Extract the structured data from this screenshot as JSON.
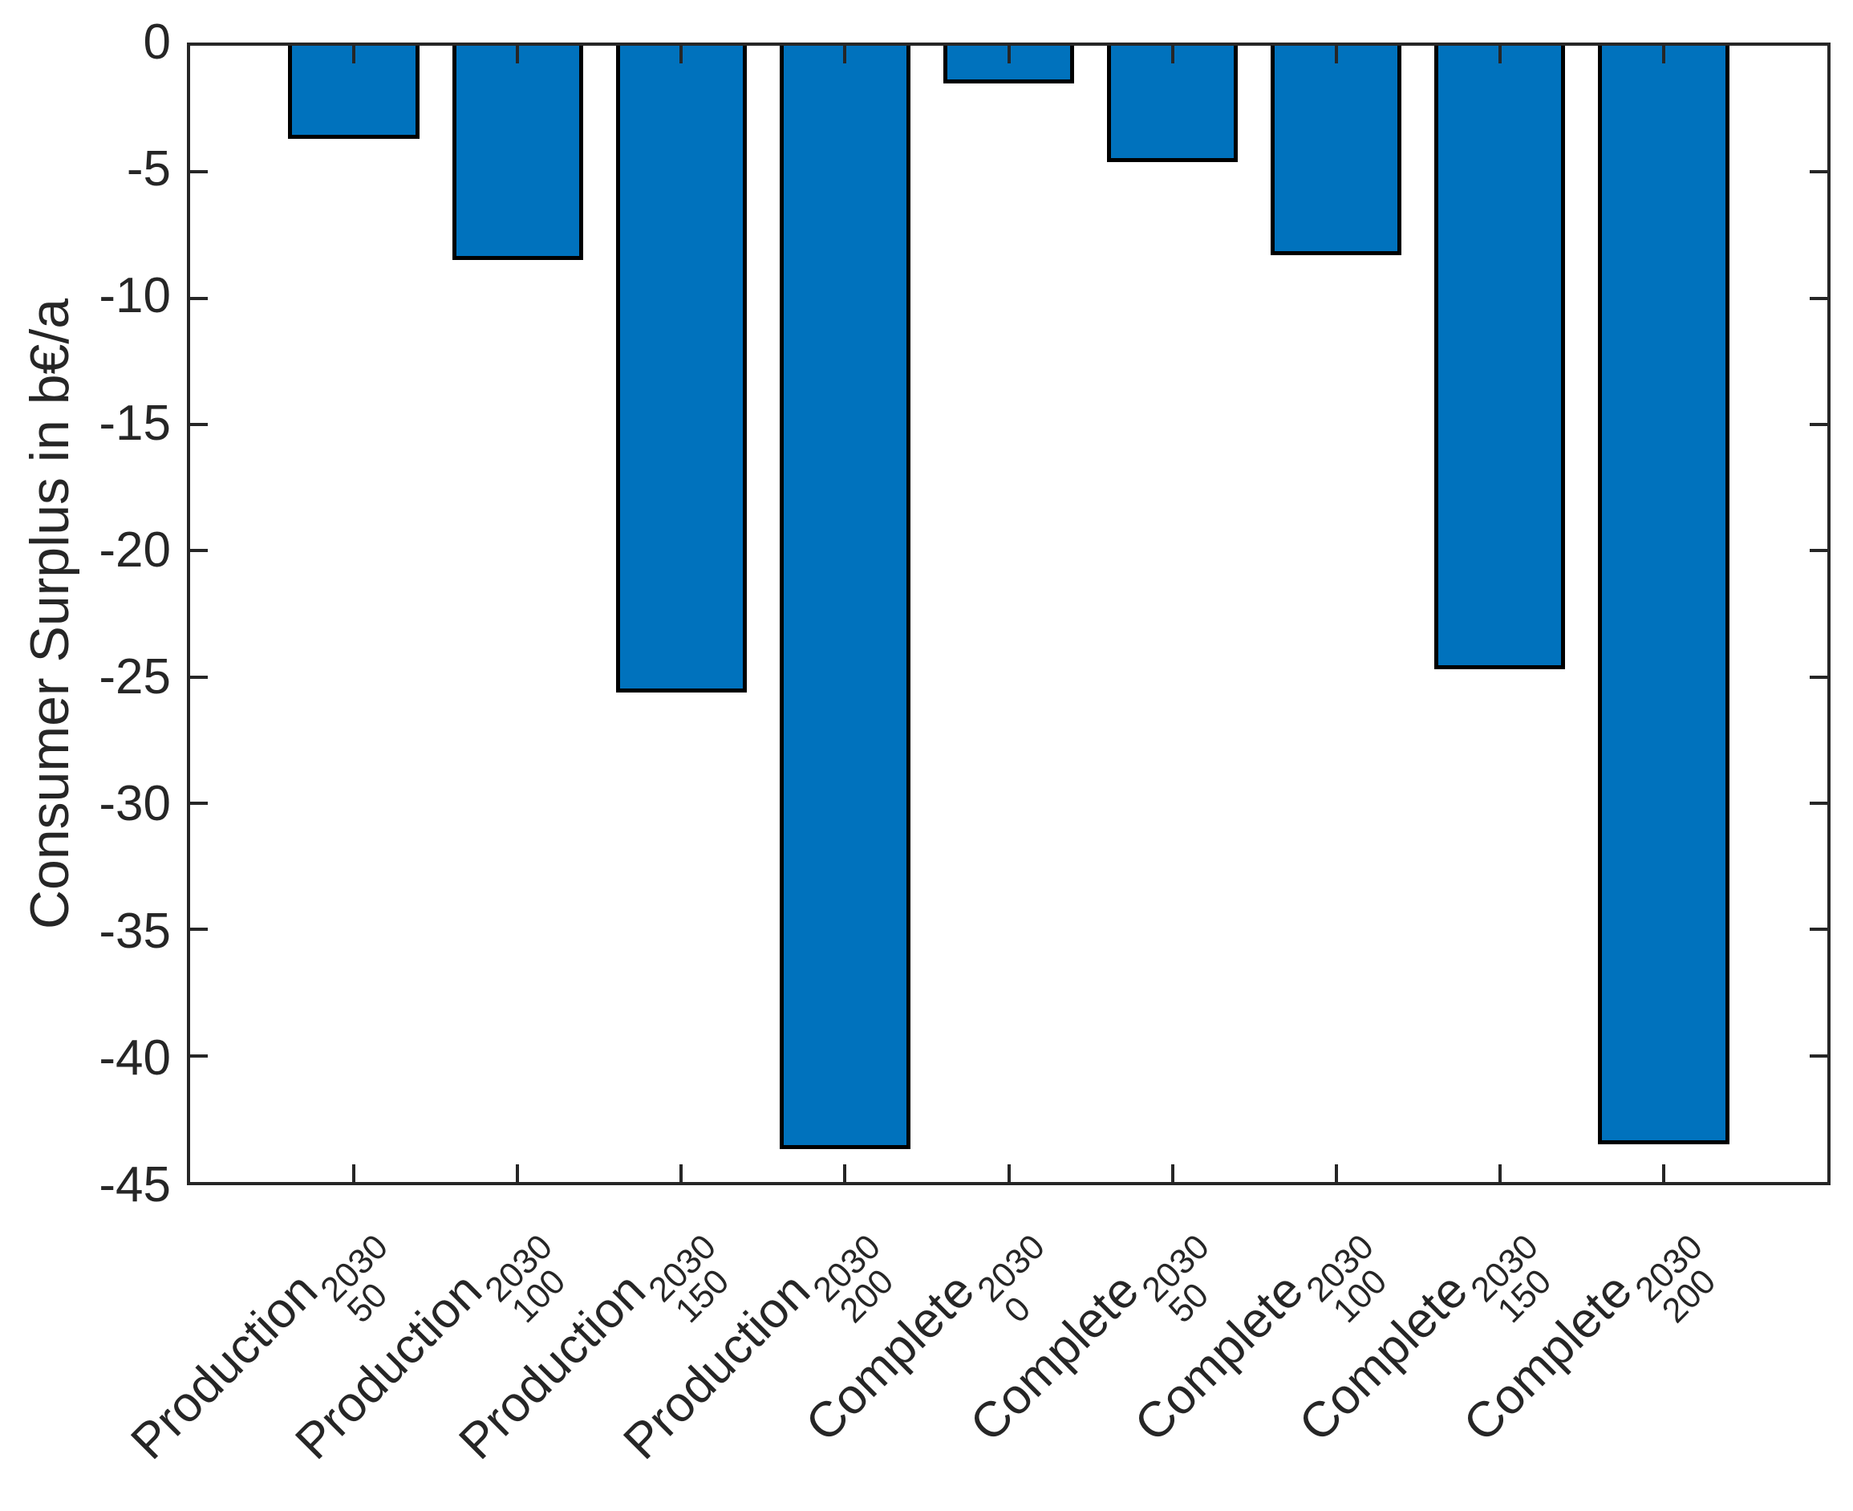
{
  "chart_data": {
    "type": "bar",
    "title": "",
    "ylabel": "Consumer Surplus in b€/a",
    "xlabel": "",
    "ylim": [
      -45,
      0
    ],
    "yticks": [
      0,
      -5,
      -10,
      -15,
      -20,
      -25,
      -30,
      -35,
      -40,
      -45
    ],
    "grid": false,
    "legend_position": "none",
    "bar_color": "#0072BD",
    "bar_edge_color": "#000000",
    "axis_color": "#262626",
    "categories": [
      {
        "base": "Production",
        "sup": "2030",
        "sub": "50"
      },
      {
        "base": "Production",
        "sup": "2030",
        "sub": "100"
      },
      {
        "base": "Production",
        "sup": "2030",
        "sub": "150"
      },
      {
        "base": "Production",
        "sup": "2030",
        "sub": "200"
      },
      {
        "base": "Complete",
        "sup": "2030",
        "sub": "0"
      },
      {
        "base": "Complete",
        "sup": "2030",
        "sub": "50"
      },
      {
        "base": "Complete",
        "sup": "2030",
        "sub": "100"
      },
      {
        "base": "Complete",
        "sup": "2030",
        "sub": "150"
      },
      {
        "base": "Complete",
        "sup": "2030",
        "sub": "200"
      }
    ],
    "values": [
      -3.7,
      -8.5,
      -25.6,
      -43.7,
      -1.5,
      -4.6,
      -8.3,
      -24.7,
      -43.5
    ]
  }
}
